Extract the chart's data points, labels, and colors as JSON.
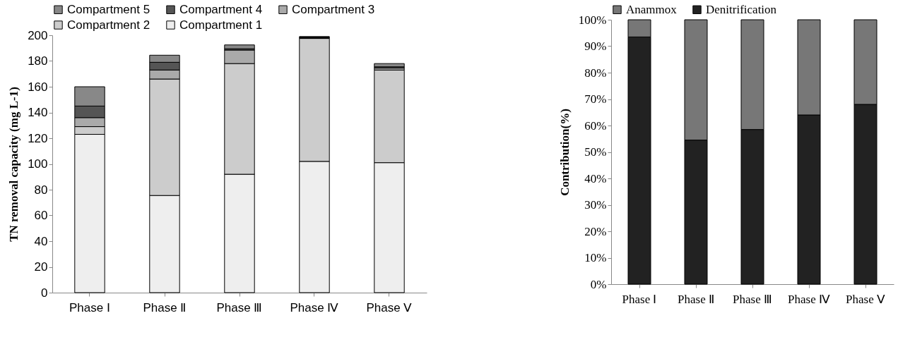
{
  "chart_data": [
    {
      "type": "bar",
      "stacked": true,
      "ylabel": "TN removal capacity (mg L-1)",
      "categories": [
        "Phase Ⅰ",
        "Phase Ⅱ",
        "Phase Ⅲ",
        "Phase Ⅳ",
        "Phase Ⅴ"
      ],
      "ylim": [
        0,
        200
      ],
      "yticks": [
        0,
        20,
        40,
        60,
        80,
        100,
        120,
        140,
        160,
        180,
        200
      ],
      "legend": "top",
      "series": [
        {
          "name": "Compartment 1",
          "color": "#eeeeee",
          "values": [
            123,
            75.5,
            92,
            102,
            101
          ]
        },
        {
          "name": "Compartment 2",
          "color": "#cccccc",
          "values": [
            6,
            90.5,
            86,
            95.5,
            72
          ]
        },
        {
          "name": "Compartment 3",
          "color": "#aaaaaa",
          "values": [
            7,
            7,
            10.5,
            0.5,
            1.5
          ]
        },
        {
          "name": "Compartment 4",
          "color": "#555555",
          "values": [
            9,
            6,
            1,
            0.5,
            1
          ]
        },
        {
          "name": "Compartment 5",
          "color": "#888888",
          "values": [
            15,
            5.5,
            3,
            0.5,
            2.5
          ]
        }
      ]
    },
    {
      "type": "bar",
      "stacked": true,
      "ylabel": "Contribution(%)",
      "categories": [
        "Phase Ⅰ",
        "Phase Ⅱ",
        "Phase Ⅲ",
        "Phase Ⅳ",
        "Phase Ⅴ"
      ],
      "ylim": [
        0,
        100
      ],
      "yticks": [
        {
          "value": 0,
          "label": "0%"
        },
        {
          "value": 10,
          "label": "10%"
        },
        {
          "value": 20,
          "label": "20%"
        },
        {
          "value": 30,
          "label": "30%"
        },
        {
          "value": 40,
          "label": "40%"
        },
        {
          "value": 50,
          "label": "50%"
        },
        {
          "value": 60,
          "label": "60%"
        },
        {
          "value": 70,
          "label": "70%"
        },
        {
          "value": 80,
          "label": "80%"
        },
        {
          "value": 90,
          "label": "90%"
        },
        {
          "value": 100,
          "label": "100%"
        }
      ],
      "legend": "top",
      "series": [
        {
          "name": "Denitrification",
          "color": "#222222",
          "values": [
            93.5,
            54.5,
            58.5,
            64,
            68
          ]
        },
        {
          "name": "Anammox",
          "color": "#777777",
          "values": [
            6.5,
            45.5,
            41.5,
            36,
            32
          ]
        }
      ]
    }
  ]
}
